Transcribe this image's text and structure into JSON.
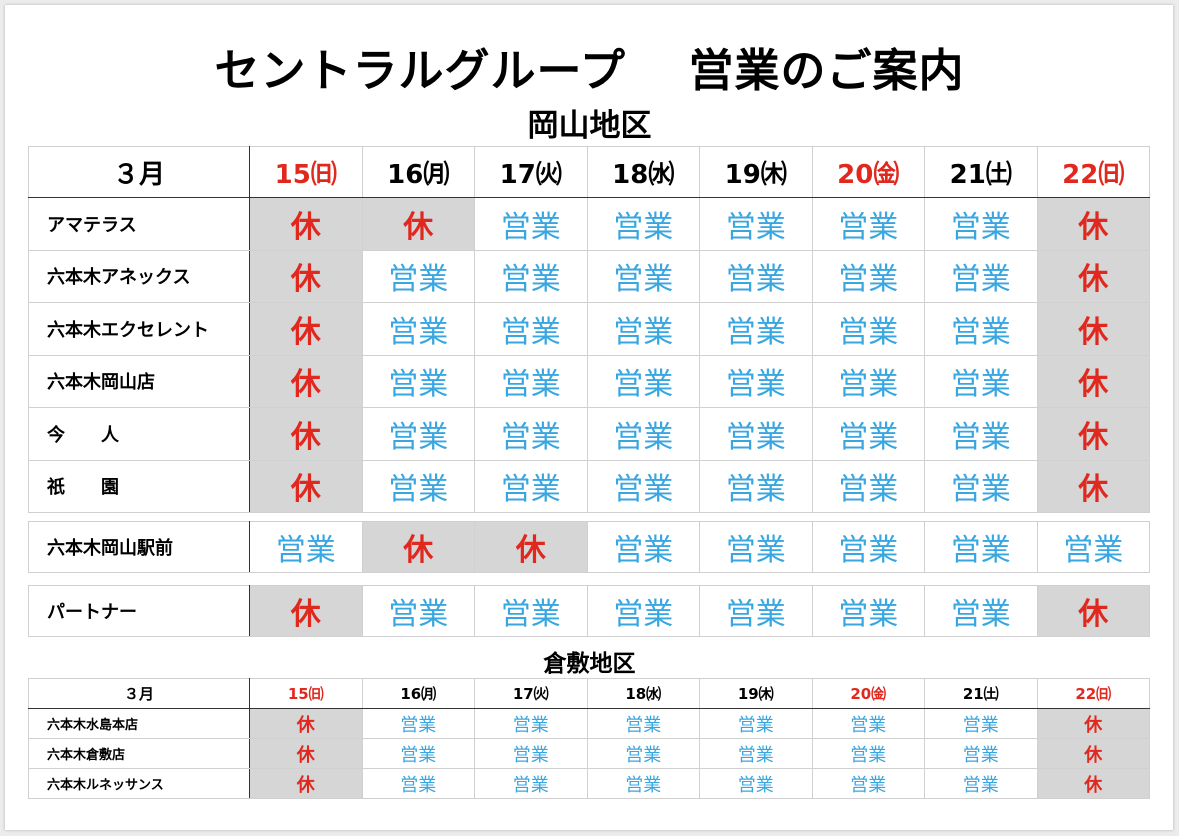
{
  "title": "セントラルグループ　 営業のご案内",
  "okayama": {
    "region_name": "岡山地区",
    "month_label": "３月",
    "days": [
      {
        "label": "15㈰",
        "holiday": true
      },
      {
        "label": "16㈪",
        "holiday": false
      },
      {
        "label": "17㈫",
        "holiday": false
      },
      {
        "label": "18㈬",
        "holiday": false
      },
      {
        "label": "19㈭",
        "holiday": false
      },
      {
        "label": "20㈮",
        "holiday": true
      },
      {
        "label": "21㈯",
        "holiday": false
      },
      {
        "label": "22㈰",
        "holiday": true
      }
    ],
    "stores": [
      {
        "name": "アマテラス",
        "status": [
          "休",
          "休",
          "営業",
          "営業",
          "営業",
          "営業",
          "営業",
          "休"
        ]
      },
      {
        "name": "六本木アネックス",
        "status": [
          "休",
          "営業",
          "営業",
          "営業",
          "営業",
          "営業",
          "営業",
          "休"
        ]
      },
      {
        "name": "六本木エクセレント",
        "status": [
          "休",
          "営業",
          "営業",
          "営業",
          "営業",
          "営業",
          "営業",
          "休"
        ]
      },
      {
        "name": "六本木岡山店",
        "status": [
          "休",
          "営業",
          "営業",
          "営業",
          "営業",
          "営業",
          "営業",
          "休"
        ]
      },
      {
        "name": "今　　人",
        "status": [
          "休",
          "営業",
          "営業",
          "営業",
          "営業",
          "営業",
          "営業",
          "休"
        ]
      },
      {
        "name": "祇　　園",
        "status": [
          "休",
          "営業",
          "営業",
          "営業",
          "営業",
          "営業",
          "営業",
          "休"
        ]
      }
    ],
    "station_store": {
      "name": "六本木岡山駅前",
      "status": [
        "営業",
        "休",
        "休",
        "営業",
        "営業",
        "営業",
        "営業",
        "営業"
      ]
    },
    "partner_store": {
      "name": "パートナー",
      "status": [
        "休",
        "営業",
        "営業",
        "営業",
        "営業",
        "営業",
        "営業",
        "休"
      ]
    }
  },
  "kurashiki": {
    "region_name": "倉敷地区",
    "month_label": "３月",
    "days": [
      {
        "label": "15㈰",
        "holiday": true
      },
      {
        "label": "16㈪",
        "holiday": false
      },
      {
        "label": "17㈫",
        "holiday": false
      },
      {
        "label": "18㈬",
        "holiday": false
      },
      {
        "label": "19㈭",
        "holiday": false
      },
      {
        "label": "20㈮",
        "holiday": true
      },
      {
        "label": "21㈯",
        "holiday": false
      },
      {
        "label": "22㈰",
        "holiday": true
      }
    ],
    "stores": [
      {
        "name": "六本木水島本店",
        "status": [
          "休",
          "営業",
          "営業",
          "営業",
          "営業",
          "営業",
          "営業",
          "休"
        ]
      },
      {
        "name": "六本木倉敷店",
        "status": [
          "休",
          "営業",
          "営業",
          "営業",
          "営業",
          "営業",
          "営業",
          "休"
        ]
      },
      {
        "name": "六本木ルネッサンス",
        "status": [
          "休",
          "営業",
          "営業",
          "営業",
          "営業",
          "営業",
          "営業",
          "休"
        ]
      }
    ]
  },
  "colors": {
    "open": "#38a6e0",
    "closed": "#e0281e",
    "closed_bg": "#d6d6d6",
    "holiday_text": "#e0281e"
  }
}
